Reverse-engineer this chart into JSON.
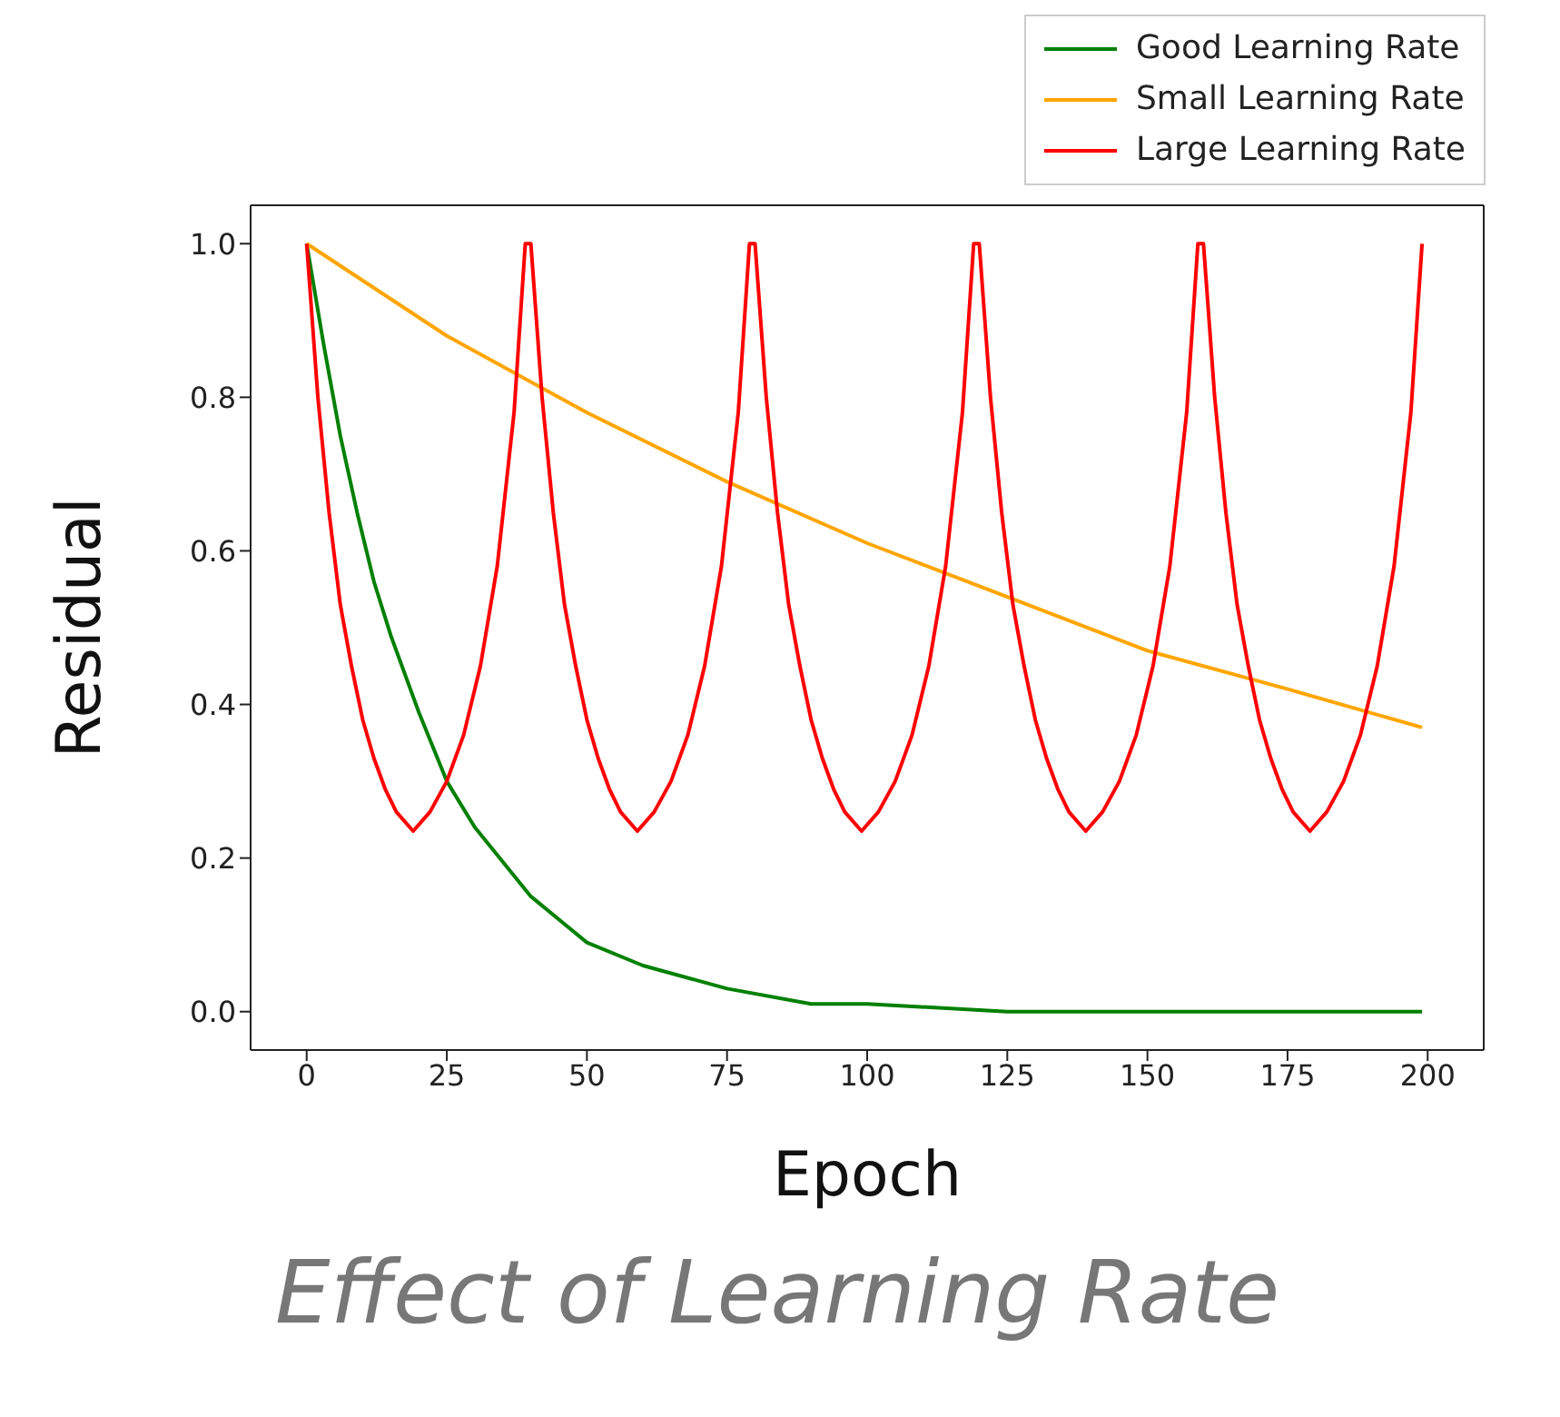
{
  "chart_data": {
    "type": "line",
    "title": "Effect of Learning Rate",
    "xlabel": "Epoch",
    "ylabel": "Residual",
    "xlim": [
      -10,
      210
    ],
    "xticks": [
      0,
      25,
      50,
      75,
      100,
      125,
      150,
      175,
      200
    ],
    "ylim": [
      -0.05,
      1.05
    ],
    "yticks": [
      {
        "value": 0,
        "label": "0.0"
      },
      0.2,
      0.4,
      0.6,
      0.8,
      {
        "value": 1,
        "label": "1.0"
      }
    ],
    "legend": "top right",
    "marker": "none",
    "line_style": "solid",
    "series": [
      {
        "name": "Good Learning Rate",
        "color": "#008000",
        "x": [
          0,
          3,
          6,
          9,
          12,
          15,
          20,
          25,
          30,
          40,
          50,
          60,
          75,
          90,
          100,
          125,
          150,
          175,
          199
        ],
        "values": [
          1,
          0.87,
          0.75,
          0.65,
          0.56,
          0.49,
          0.39,
          0.3,
          0.24,
          0.15,
          0.09,
          0.06,
          0.03,
          0.01,
          0.01,
          0,
          0,
          0,
          0
        ]
      },
      {
        "name": "Small Learning Rate",
        "color": "#ffa500",
        "x": [
          0,
          25,
          50,
          75,
          100,
          125,
          150,
          175,
          199
        ],
        "values": [
          1,
          0.88,
          0.78,
          0.69,
          0.61,
          0.54,
          0.47,
          0.42,
          0.37
        ]
      },
      {
        "name": "Large Learning Rate",
        "color": "#ff0000",
        "x": [
          0,
          2,
          4,
          6,
          8,
          10,
          12,
          14,
          16,
          19,
          22,
          25,
          28,
          31,
          34,
          37,
          39,
          40,
          42,
          44,
          46,
          48,
          50,
          52,
          54,
          56,
          59,
          62,
          65,
          68,
          71,
          74,
          77,
          79,
          80,
          82,
          84,
          86,
          88,
          90,
          92,
          94,
          96,
          99,
          102,
          105,
          108,
          111,
          114,
          117,
          119,
          120,
          122,
          124,
          126,
          128,
          130,
          132,
          134,
          136,
          139,
          142,
          145,
          148,
          151,
          154,
          157,
          159,
          160,
          162,
          164,
          166,
          168,
          170,
          172,
          174,
          176,
          179,
          182,
          185,
          188,
          191,
          194,
          197,
          199
        ],
        "values": [
          1,
          0.8,
          0.65,
          0.53,
          0.45,
          0.38,
          0.33,
          0.29,
          0.26,
          0.235,
          0.26,
          0.3,
          0.36,
          0.45,
          0.58,
          0.78,
          1,
          1,
          0.8,
          0.65,
          0.53,
          0.45,
          0.38,
          0.33,
          0.29,
          0.26,
          0.235,
          0.26,
          0.3,
          0.36,
          0.45,
          0.58,
          0.78,
          1,
          1,
          0.8,
          0.65,
          0.53,
          0.45,
          0.38,
          0.33,
          0.29,
          0.26,
          0.235,
          0.26,
          0.3,
          0.36,
          0.45,
          0.58,
          0.78,
          1,
          1,
          0.8,
          0.65,
          0.53,
          0.45,
          0.38,
          0.33,
          0.29,
          0.26,
          0.235,
          0.26,
          0.3,
          0.36,
          0.45,
          0.58,
          0.78,
          1,
          1,
          0.8,
          0.65,
          0.53,
          0.45,
          0.38,
          0.33,
          0.29,
          0.26,
          0.235,
          0.26,
          0.3,
          0.36,
          0.45,
          0.58,
          0.78,
          1
        ]
      }
    ]
  }
}
